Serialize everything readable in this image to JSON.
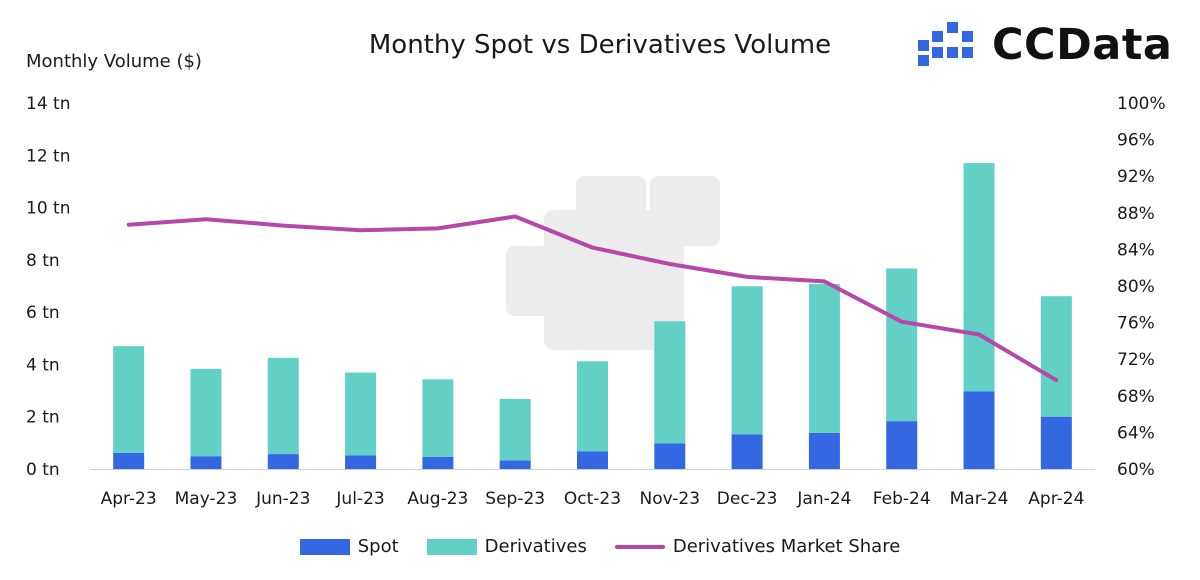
{
  "chart_data": {
    "type": "bar",
    "title": "Monthy Spot vs Derivatives Volume",
    "ylabel": "Monthly Volume ($)",
    "categories": [
      "Apr-23",
      "May-23",
      "Jun-23",
      "Jul-23",
      "Aug-23",
      "Sep-23",
      "Oct-23",
      "Nov-23",
      "Dec-23",
      "Jan-24",
      "Feb-24",
      "Mar-24",
      "Apr-24"
    ],
    "stacked": true,
    "series": [
      {
        "name": "Spot",
        "type": "bar",
        "axis": "left",
        "color": "#3468e3",
        "values": [
          0.62,
          0.49,
          0.57,
          0.52,
          0.46,
          0.33,
          0.67,
          0.98,
          1.33,
          1.38,
          1.83,
          2.97,
          2.0
        ]
      },
      {
        "name": "Derivatives",
        "type": "bar",
        "axis": "left",
        "color": "#62d0c5",
        "values": [
          4.08,
          3.34,
          3.68,
          3.17,
          2.97,
          2.35,
          3.45,
          4.67,
          5.66,
          5.7,
          5.84,
          8.73,
          4.61
        ]
      },
      {
        "name": "Derivatives Market Share",
        "type": "line",
        "axis": "right",
        "color": "#b548a8",
        "values": [
          86.7,
          87.3,
          86.6,
          86.1,
          86.3,
          87.6,
          84.2,
          82.4,
          81.0,
          80.5,
          76.1,
          74.7,
          69.7
        ]
      }
    ],
    "ylim": [
      0,
      14
    ],
    "y_ticks": [
      "0 tn",
      "2 tn",
      "4 tn",
      "6 tn",
      "8 tn",
      "10 tn",
      "12 tn",
      "14 tn"
    ],
    "y_tick_values": [
      0,
      2,
      4,
      6,
      8,
      10,
      12,
      14
    ],
    "y2lim": [
      60,
      100
    ],
    "y2_ticks": [
      "60%",
      "64%",
      "68%",
      "72%",
      "76%",
      "80%",
      "84%",
      "88%",
      "92%",
      "96%",
      "100%"
    ],
    "y2_tick_values": [
      60,
      64,
      68,
      72,
      76,
      80,
      84,
      88,
      92,
      96,
      100
    ],
    "grid": false,
    "legend_position": "bottom"
  },
  "brand": {
    "name": "CCData",
    "color": "#3468e3"
  }
}
